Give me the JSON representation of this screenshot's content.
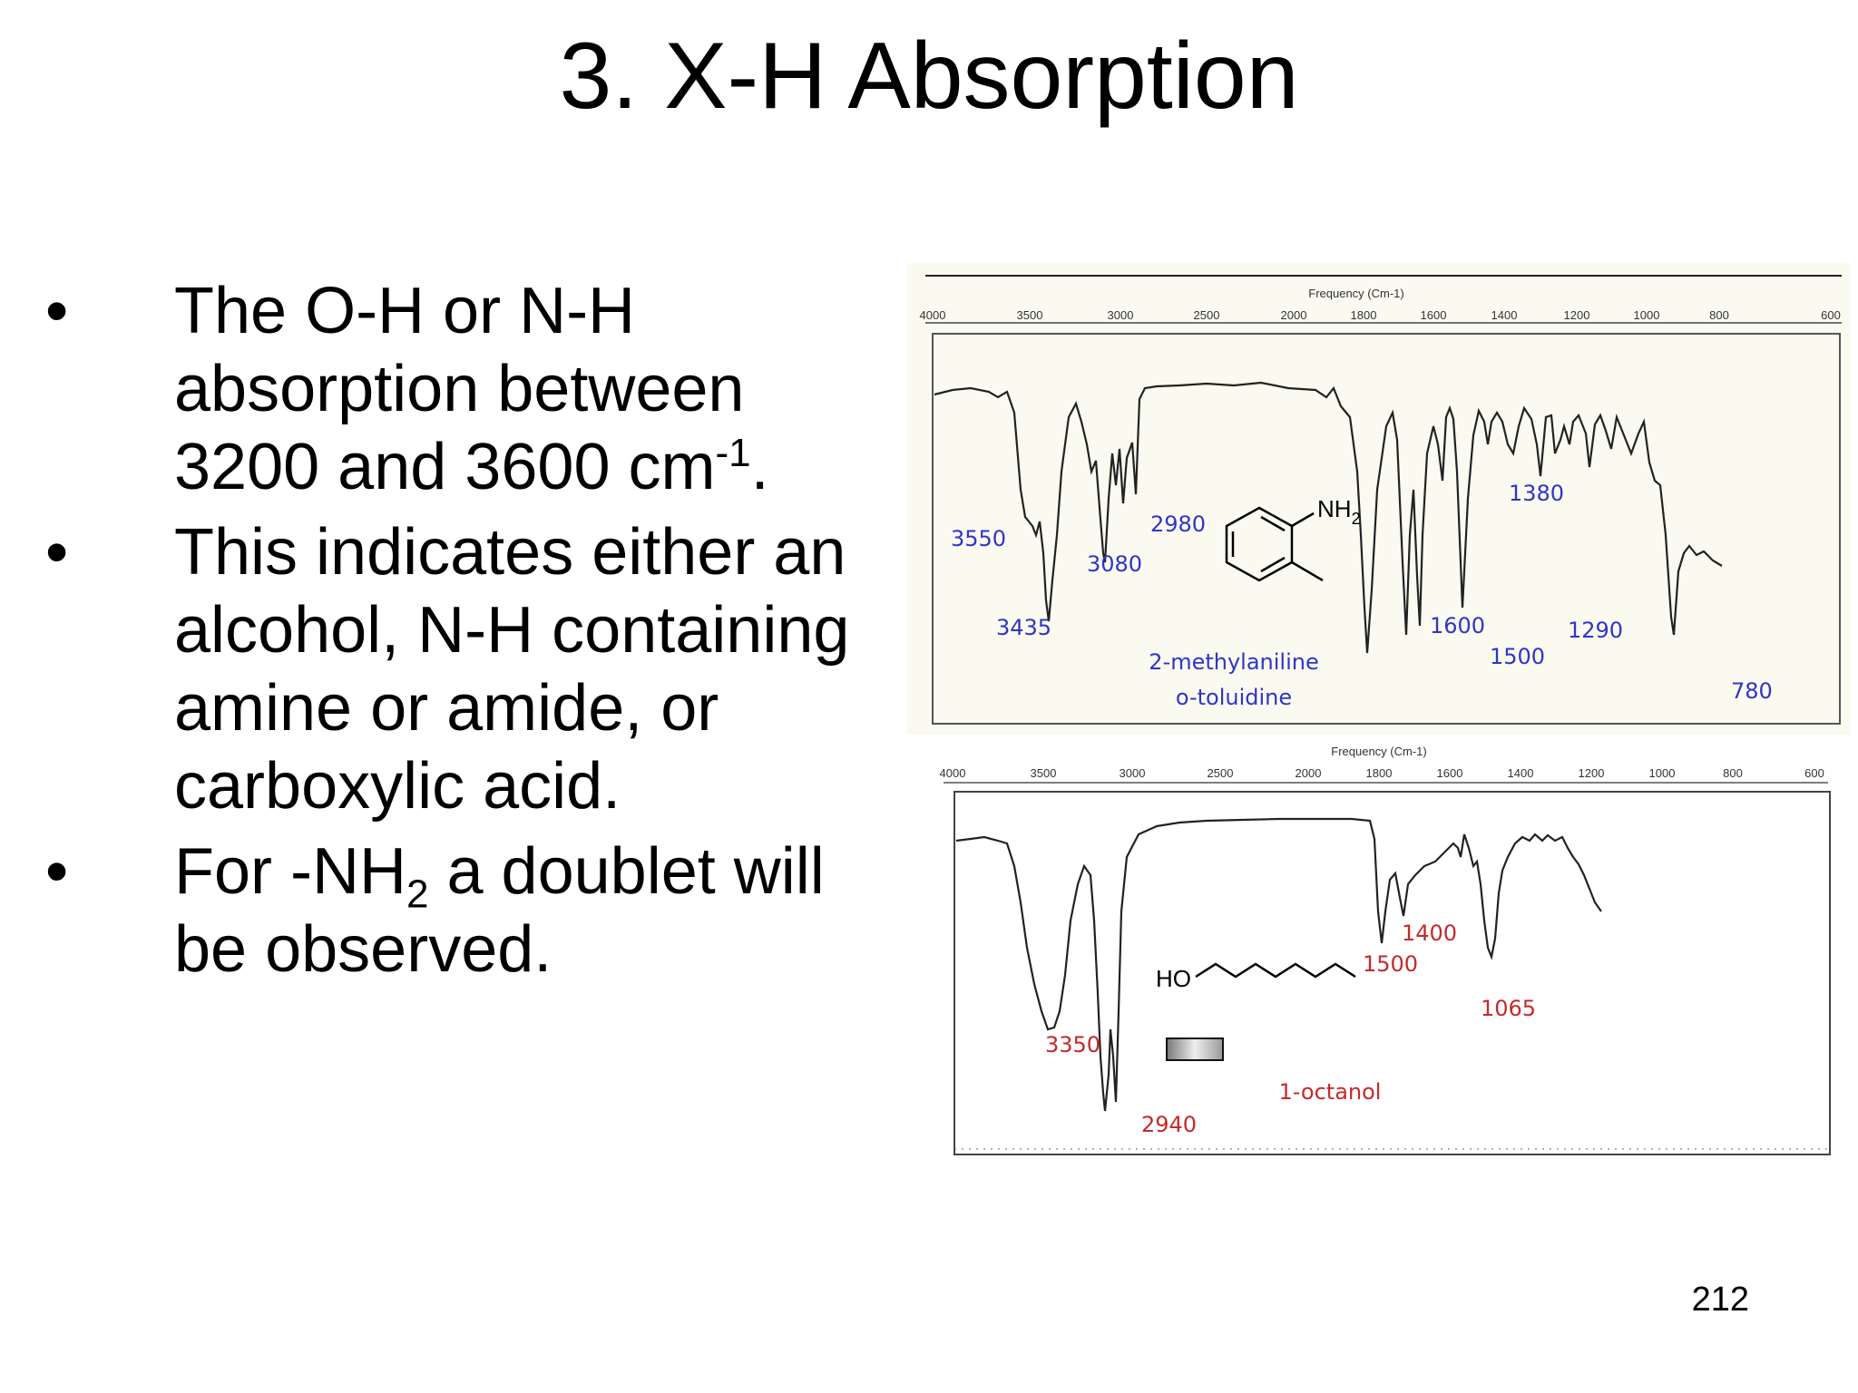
{
  "slide": {
    "title": "3.  X-H Absorption",
    "bullets": [
      {
        "marker": "•",
        "text": "The O-H or N-H absorption between 3200 and 3600 cm",
        "sup": "-1",
        "tail": "."
      },
      {
        "marker": "•",
        "text": "This indicates either an alcohol, N-H containing amine or amide, or carboxylic acid."
      },
      {
        "marker": "•",
        "text": "For -NH",
        "sub": "2",
        "tail": " a doublet will be observed."
      }
    ],
    "page_number": "212"
  },
  "spectra": {
    "top": {
      "axis_title": "Frequency (Cm-1)",
      "ticks": [
        "4000",
        "3500",
        "3000",
        "2500",
        "2000",
        "1800",
        "1600",
        "1400",
        "1200",
        "1000",
        "800",
        "600"
      ],
      "peaks": [
        "3550",
        "3435",
        "3080",
        "2980",
        "1380",
        "1600",
        "1500",
        "1290",
        "780"
      ],
      "molecule_label": "NH",
      "molecule_sub": "2",
      "compound_name": "2-methylaniline",
      "compound_alt": "o-toluidine",
      "label_color": "#2f35c8"
    },
    "bottom": {
      "axis_title": "Frequency (Cm-1)",
      "ticks": [
        "4000",
        "3500",
        "3000",
        "2500",
        "2000",
        "1800",
        "1600",
        "1400",
        "1200",
        "1000",
        "800",
        "600"
      ],
      "peaks": [
        "3350",
        "2940",
        "1400",
        "1500",
        "1065"
      ],
      "molecule_label": "HO",
      "compound_name": "1-octanol",
      "label_color": "#c52a2a"
    }
  }
}
